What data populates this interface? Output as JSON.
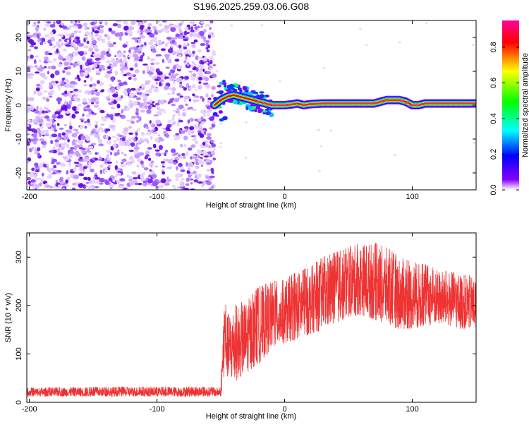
{
  "title": "S196.2025.259.03.06.G08",
  "chart_data": [
    {
      "type": "heatmap",
      "title": "S196.2025.259.03.06.G08",
      "xlabel": "Height of straight line (km)",
      "ylabel": "Frequency (Hz)",
      "xlim": [
        -202,
        150
      ],
      "ylim": [
        -25,
        25
      ],
      "xticks": [
        -200,
        -100,
        0,
        100
      ],
      "yticks": [
        -20,
        -10,
        0,
        10,
        20
      ],
      "noise_region_x": [
        -202,
        -55
      ],
      "signal_start_x": -55,
      "ridge": {
        "x": [
          -55,
          -50,
          -45,
          -40,
          -35,
          -30,
          -25,
          -20,
          -15,
          -10,
          -5,
          0,
          5,
          10,
          15,
          20,
          30,
          40,
          50,
          60,
          70,
          75,
          80,
          85,
          90,
          95,
          100,
          105,
          110,
          120,
          130,
          140,
          150
        ],
        "y": [
          0,
          1.5,
          2.5,
          3,
          2.5,
          2,
          1.5,
          1,
          0.5,
          0,
          0,
          0,
          0.2,
          0.5,
          0,
          0.3,
          0.5,
          0.5,
          0.5,
          0.5,
          0.5,
          1,
          1.5,
          1.5,
          1.5,
          1,
          0,
          0,
          0.5,
          0.5,
          0.5,
          0.5,
          0.5
        ]
      },
      "colorbar": {
        "label": "Normalized spectral amplitude",
        "ticks": [
          0.0,
          0.2,
          0.4,
          0.6,
          0.8
        ],
        "range": [
          0,
          0.95
        ],
        "colors": [
          "#ffffff",
          "#8800ff",
          "#0000ff",
          "#00ffff",
          "#00ff00",
          "#ffff00",
          "#ff0000",
          "#ff0099"
        ]
      }
    },
    {
      "type": "line",
      "xlabel": "Height of straight line (km)",
      "ylabel": "SNR (10 * v/v)",
      "xlim": [
        -202,
        150
      ],
      "ylim": [
        0,
        350
      ],
      "xticks": [
        -200,
        -100,
        0,
        100
      ],
      "yticks": [
        0,
        100,
        200,
        300
      ],
      "color": "#ee3333",
      "envelope": {
        "x": [
          -202,
          -150,
          -100,
          -60,
          -50,
          -47,
          -45,
          -40,
          -30,
          -20,
          -10,
          0,
          10,
          20,
          30,
          40,
          50,
          60,
          70,
          80,
          90,
          100,
          110,
          120,
          130,
          140,
          150
        ],
        "low": [
          12,
          12,
          12,
          12,
          12,
          60,
          50,
          40,
          60,
          80,
          110,
          120,
          130,
          140,
          150,
          160,
          175,
          180,
          170,
          160,
          150,
          150,
          155,
          160,
          155,
          150,
          150
        ],
        "high": [
          30,
          32,
          32,
          32,
          30,
          250,
          180,
          200,
          210,
          240,
          250,
          255,
          270,
          280,
          300,
          310,
          320,
          330,
          330,
          320,
          300,
          290,
          285,
          275,
          270,
          265,
          260
        ]
      }
    }
  ]
}
